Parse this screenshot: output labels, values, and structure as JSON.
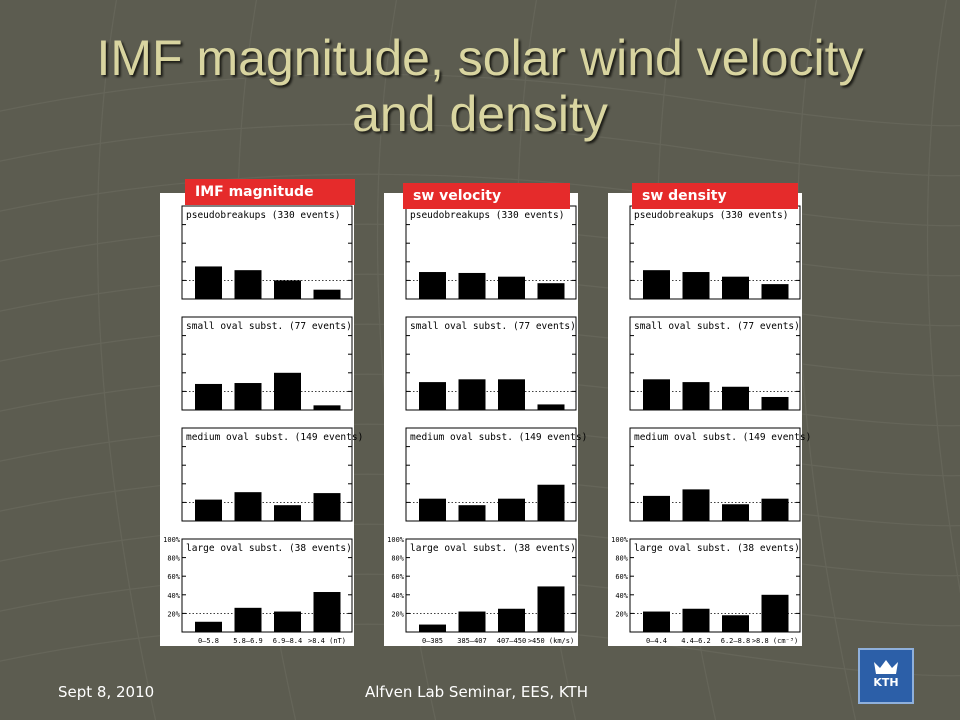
{
  "slide": {
    "title_line1": "IMF magnitude, solar wind velocity",
    "title_line2": "and density",
    "footer_date": "Sept 8, 2010",
    "footer_center": "Alfven Lab Seminar, EES, KTH",
    "logo_text": "KTH"
  },
  "colors": {
    "tag": "#e52b2b",
    "bar": "#000000",
    "title": "#d9d5a0",
    "background": "#5c5c50"
  },
  "chart_data": [
    {
      "type": "bar",
      "title": "IMF magnitude",
      "categories": [
        "0–5.8",
        "5.8–6.9",
        "6.9–8.4",
        ">8.4 (nT)"
      ],
      "y_ticks": [
        "100%",
        "80%",
        "60%",
        "40%",
        "20%"
      ],
      "ylim": [
        0,
        100
      ],
      "reference_line": 20,
      "series": [
        {
          "name": "pseudobreakups (330 events)",
          "values": [
            35,
            31,
            20,
            10
          ]
        },
        {
          "name": "small oval subst. (77 events)",
          "values": [
            28,
            29,
            40,
            5
          ]
        },
        {
          "name": "medium oval subst. (149 events)",
          "values": [
            23,
            31,
            17,
            30
          ]
        },
        {
          "name": "large oval subst. (38 events)",
          "values": [
            11,
            26,
            22,
            43
          ]
        }
      ]
    },
    {
      "type": "bar",
      "title": "sw velocity",
      "categories": [
        "0–385",
        "385–407",
        "407–450",
        ">450 (km/s)"
      ],
      "y_ticks": [
        "100%",
        "80%",
        "60%",
        "40%",
        "20%"
      ],
      "ylim": [
        0,
        100
      ],
      "reference_line": 20,
      "series": [
        {
          "name": "pseudobreakups (330 events)",
          "values": [
            29,
            28,
            24,
            17
          ]
        },
        {
          "name": "small oval subst. (77 events)",
          "values": [
            30,
            33,
            33,
            6
          ]
        },
        {
          "name": "medium oval subst. (149 events)",
          "values": [
            24,
            17,
            24,
            39
          ]
        },
        {
          "name": "large oval subst. (38 events)",
          "values": [
            8,
            22,
            25,
            49
          ]
        }
      ]
    },
    {
      "type": "bar",
      "title": "sw density",
      "categories": [
        "0–4.4",
        "4.4–6.2",
        "6.2–8.8",
        ">8.8 (cm⁻³)"
      ],
      "y_ticks": [
        "100%",
        "80%",
        "60%",
        "40%",
        "20%"
      ],
      "ylim": [
        0,
        100
      ],
      "reference_line": 20,
      "series": [
        {
          "name": "pseudobreakups (330 events)",
          "values": [
            31,
            29,
            24,
            16
          ]
        },
        {
          "name": "small oval subst. (77 events)",
          "values": [
            33,
            30,
            25,
            14
          ]
        },
        {
          "name": "medium oval subst. (149 events)",
          "values": [
            27,
            34,
            18,
            24
          ]
        },
        {
          "name": "large oval subst. (38 events)",
          "values": [
            22,
            25,
            18,
            40
          ]
        }
      ]
    }
  ]
}
